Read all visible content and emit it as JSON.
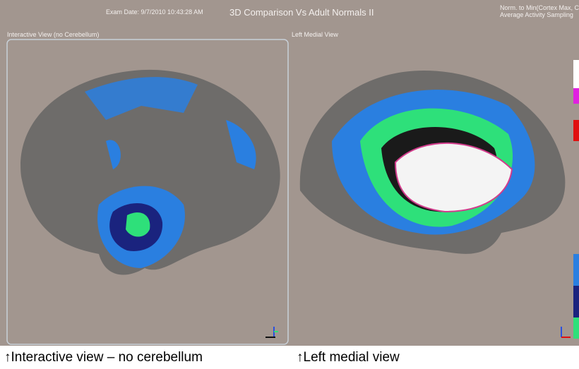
{
  "header": {
    "exam_date": "Exam Date: 9/7/2010 10:43:28 AM",
    "title": "3D Comparison Vs Adult Normals II",
    "norm_line1": "Norm. to Min(Cortex Max, Cb Ma",
    "norm_line2": "Average Activity Sampling"
  },
  "panels": [
    {
      "label": "Interactive View (no Cerebellum)"
    },
    {
      "label": "Left Medial View"
    }
  ],
  "captions": [
    "↑Interactive view – no cerebellum",
    "↑Left medial view"
  ]
}
